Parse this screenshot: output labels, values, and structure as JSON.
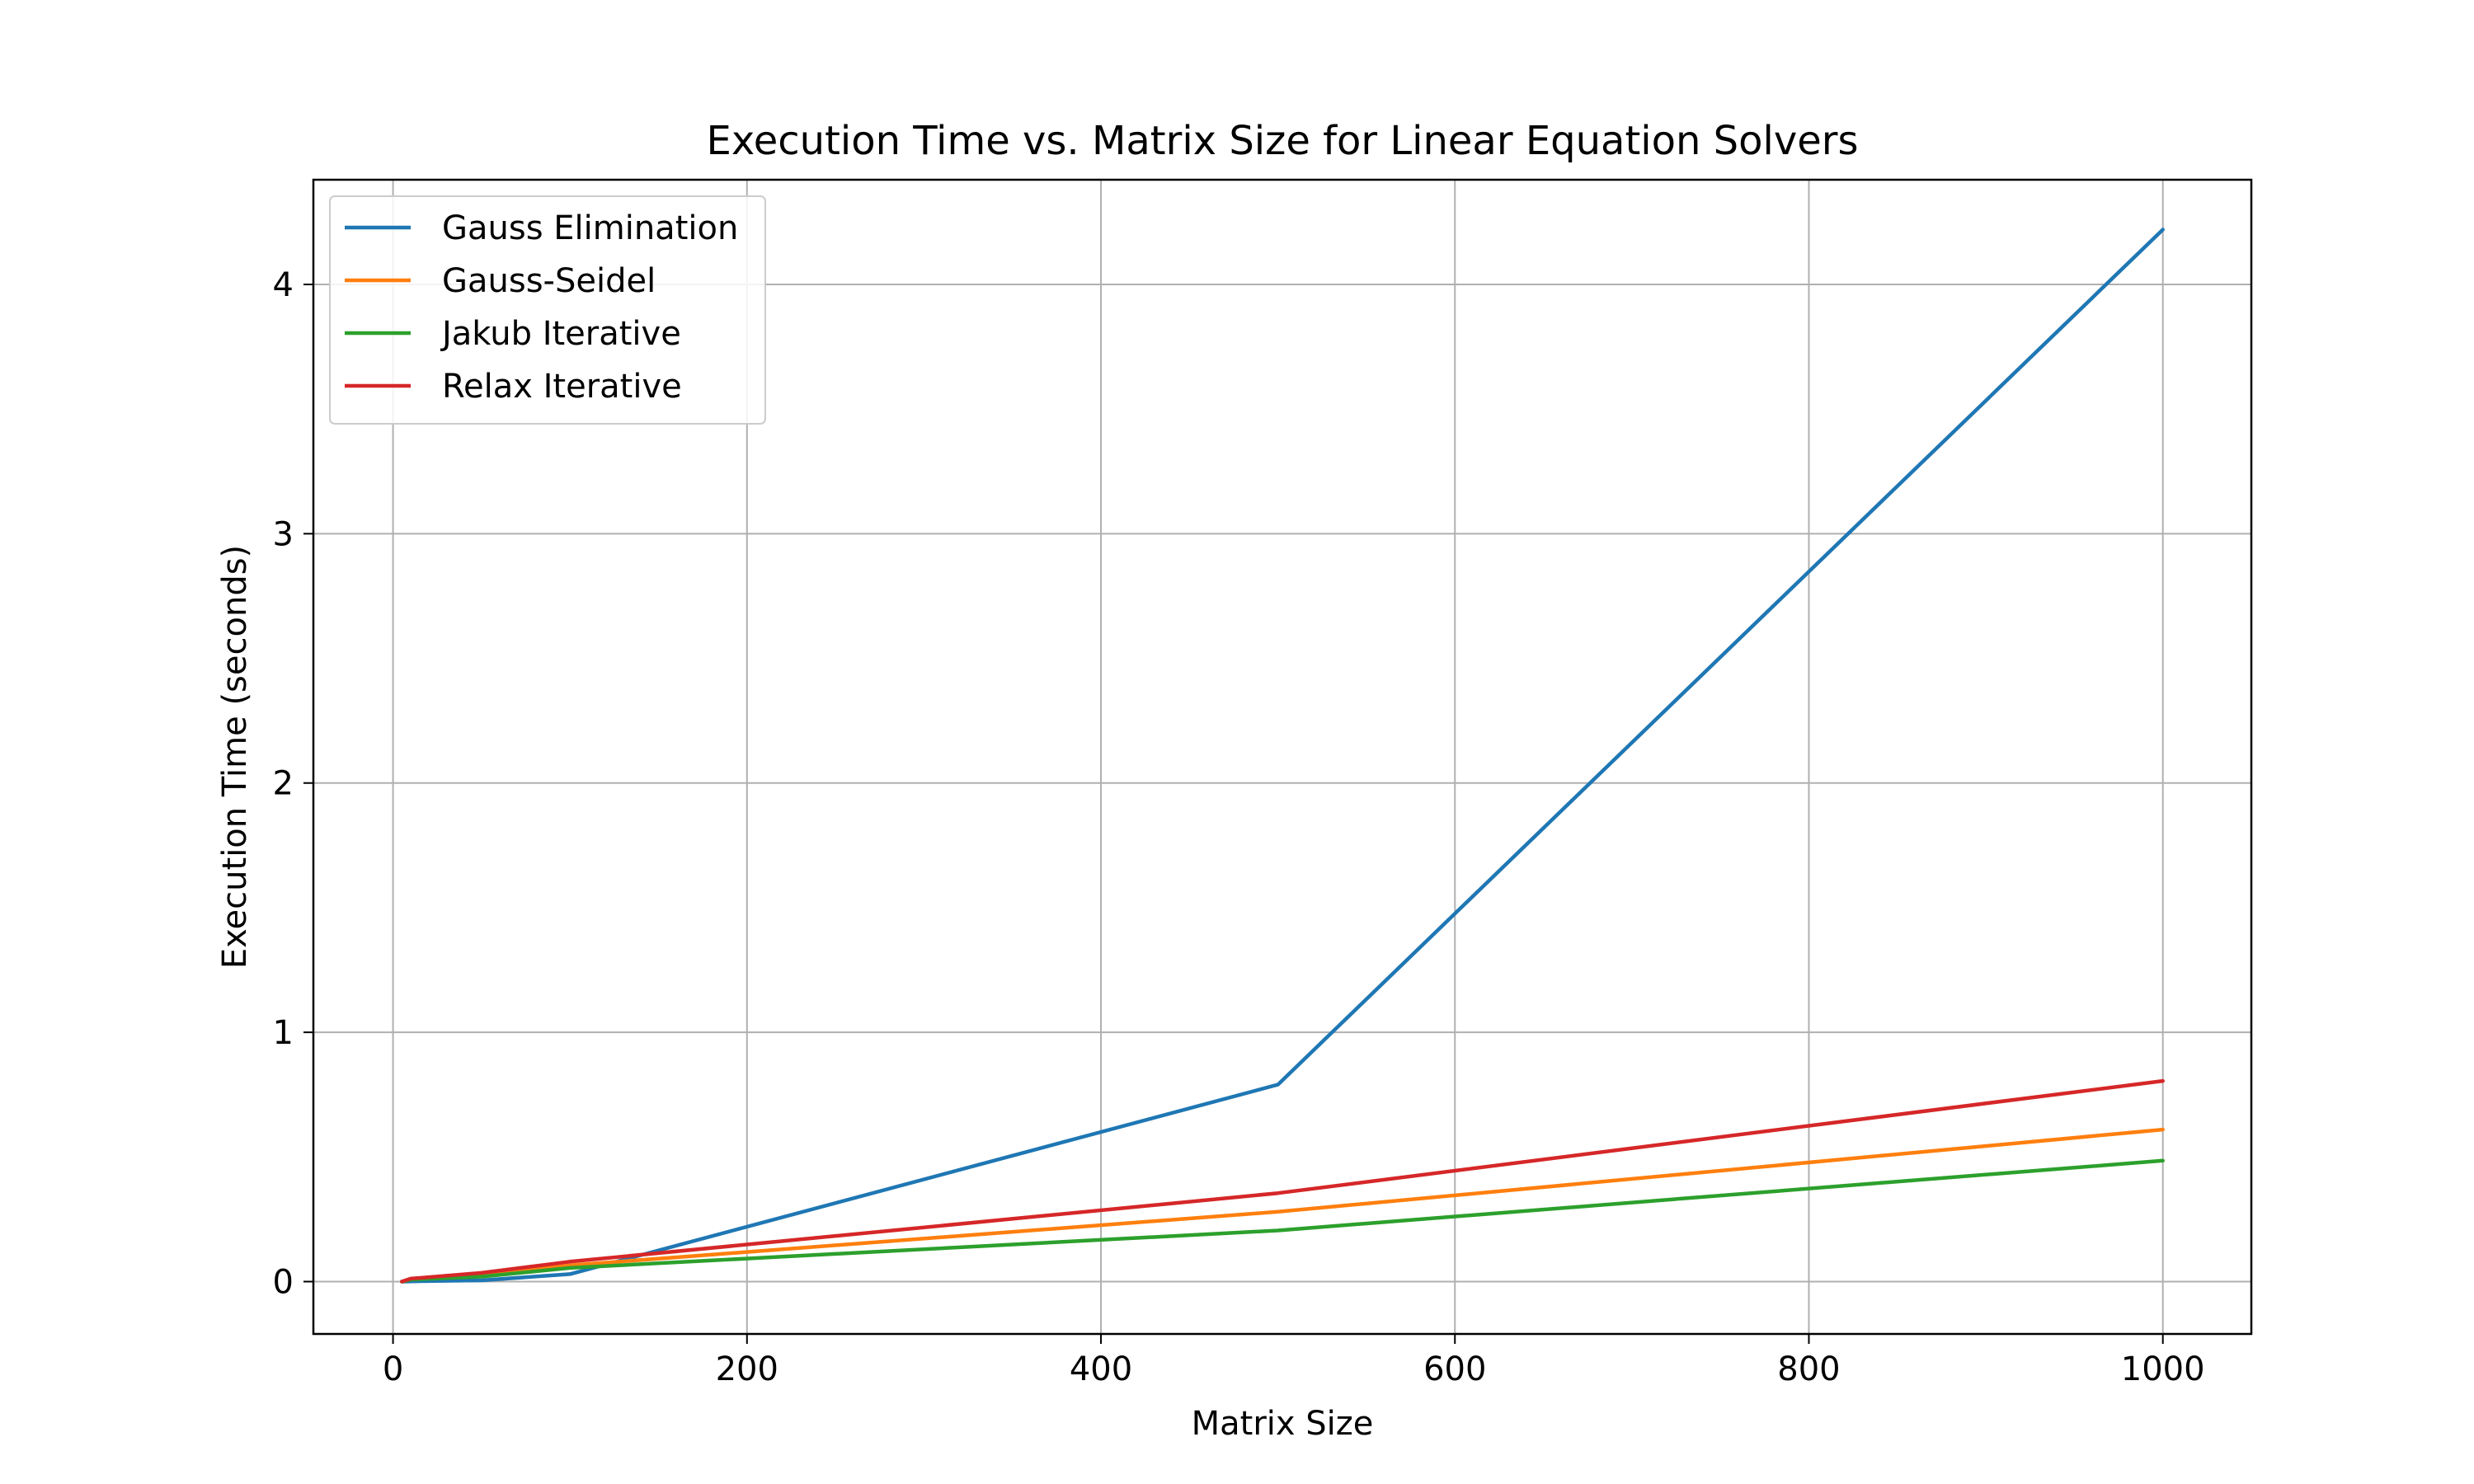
{
  "chart_data": {
    "type": "line",
    "title": "Execution Time vs. Matrix Size for Linear Equation Solvers",
    "xlabel": "Matrix Size",
    "ylabel": "Execution Time (seconds)",
    "xlim": [
      -45,
      1050
    ],
    "ylim": [
      -0.21,
      4.42
    ],
    "xticks": [
      0,
      200,
      400,
      600,
      800,
      1000
    ],
    "yticks": [
      0,
      1,
      2,
      3,
      4
    ],
    "grid": true,
    "legend_position": "top-left",
    "x": [
      5,
      10,
      50,
      100,
      500,
      1000
    ],
    "series": [
      {
        "name": "Gauss Elimination",
        "color": "#1f77b4",
        "values": [
          0.0,
          0.001,
          0.005,
          0.03,
          0.79,
          4.22
        ]
      },
      {
        "name": "Gauss-Seidel",
        "color": "#ff7f0e",
        "values": [
          0.0,
          0.01,
          0.025,
          0.065,
          0.28,
          0.61
        ]
      },
      {
        "name": "Jakub Iterative",
        "color": "#2ca02c",
        "values": [
          0.0,
          0.008,
          0.02,
          0.055,
          0.205,
          0.485
        ]
      },
      {
        "name": "Relax Iterative",
        "color": "#d62728",
        "values": [
          0.0,
          0.012,
          0.035,
          0.08,
          0.355,
          0.805
        ]
      }
    ]
  }
}
